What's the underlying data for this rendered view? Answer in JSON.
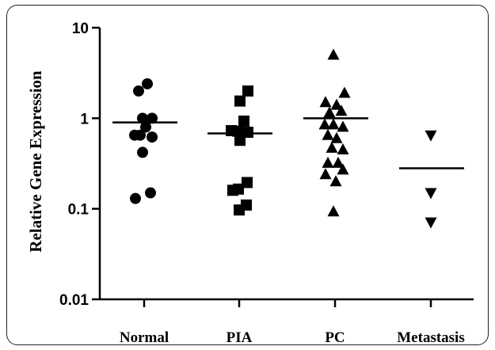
{
  "chart_data": {
    "type": "scatter",
    "title": "",
    "xlabel": "",
    "ylabel": "Relative Gene Expression",
    "yscale": "log",
    "ylim": [
      0.01,
      10
    ],
    "yticks": [
      {
        "value": 10,
        "label": "10"
      },
      {
        "value": 1,
        "label": "1"
      },
      {
        "value": 0.1,
        "label": "0.1"
      },
      {
        "value": 0.01,
        "label": "0.01"
      }
    ],
    "grid": false,
    "legend": "none",
    "categories": [
      "Normal",
      "PIA",
      "PC",
      "Metastasis"
    ],
    "series": [
      {
        "category": "Normal",
        "marker": "circle",
        "median": 0.9,
        "points": [
          {
            "offset": -0.35,
            "y": 2.0
          },
          {
            "offset": 0.2,
            "y": 2.4
          },
          {
            "offset": -0.1,
            "y": 1.0
          },
          {
            "offset": 0.5,
            "y": 1.0
          },
          {
            "offset": -0.6,
            "y": 0.65
          },
          {
            "offset": -0.25,
            "y": 0.65
          },
          {
            "offset": 0.1,
            "y": 0.8
          },
          {
            "offset": 0.5,
            "y": 0.62
          },
          {
            "offset": -0.1,
            "y": 0.42
          },
          {
            "offset": -0.55,
            "y": 0.13
          },
          {
            "offset": 0.4,
            "y": 0.15
          }
        ]
      },
      {
        "category": "PIA",
        "marker": "square",
        "median": 0.68,
        "points": [
          {
            "offset": 0.55,
            "y": 2.0
          },
          {
            "offset": 0.05,
            "y": 1.55
          },
          {
            "offset": 0.3,
            "y": 0.93
          },
          {
            "offset": -0.5,
            "y": 0.73
          },
          {
            "offset": -0.1,
            "y": 0.72
          },
          {
            "offset": 0.55,
            "y": 0.7
          },
          {
            "offset": 0.05,
            "y": 0.57
          },
          {
            "offset": 0.5,
            "y": 0.195
          },
          {
            "offset": -0.4,
            "y": 0.16
          },
          {
            "offset": -0.05,
            "y": 0.165
          },
          {
            "offset": 0.0,
            "y": 0.097
          },
          {
            "offset": 0.45,
            "y": 0.11
          }
        ]
      },
      {
        "category": "PC",
        "marker": "triangle-up",
        "median": 1.0,
        "points": [
          {
            "offset": -0.1,
            "y": 5.0
          },
          {
            "offset": 0.6,
            "y": 1.9
          },
          {
            "offset": -0.6,
            "y": 1.5
          },
          {
            "offset": 0.1,
            "y": 1.4
          },
          {
            "offset": 0.4,
            "y": 1.2
          },
          {
            "offset": -0.35,
            "y": 1.15
          },
          {
            "offset": -0.65,
            "y": 0.85
          },
          {
            "offset": -0.1,
            "y": 0.85
          },
          {
            "offset": 0.5,
            "y": 0.8
          },
          {
            "offset": -0.45,
            "y": 0.65
          },
          {
            "offset": 0.1,
            "y": 0.6
          },
          {
            "offset": -0.2,
            "y": 0.47
          },
          {
            "offset": 0.5,
            "y": 0.45
          },
          {
            "offset": -0.45,
            "y": 0.32
          },
          {
            "offset": 0.2,
            "y": 0.32
          },
          {
            "offset": -0.6,
            "y": 0.24
          },
          {
            "offset": 0.5,
            "y": 0.27
          },
          {
            "offset": 0.05,
            "y": 0.2
          },
          {
            "offset": -0.1,
            "y": 0.093
          }
        ]
      },
      {
        "category": "Metastasis",
        "marker": "triangle-down",
        "median": 0.28,
        "points": [
          {
            "offset": 0.0,
            "y": 0.65
          },
          {
            "offset": 0.0,
            "y": 0.15
          },
          {
            "offset": 0.0,
            "y": 0.071
          }
        ]
      }
    ]
  }
}
